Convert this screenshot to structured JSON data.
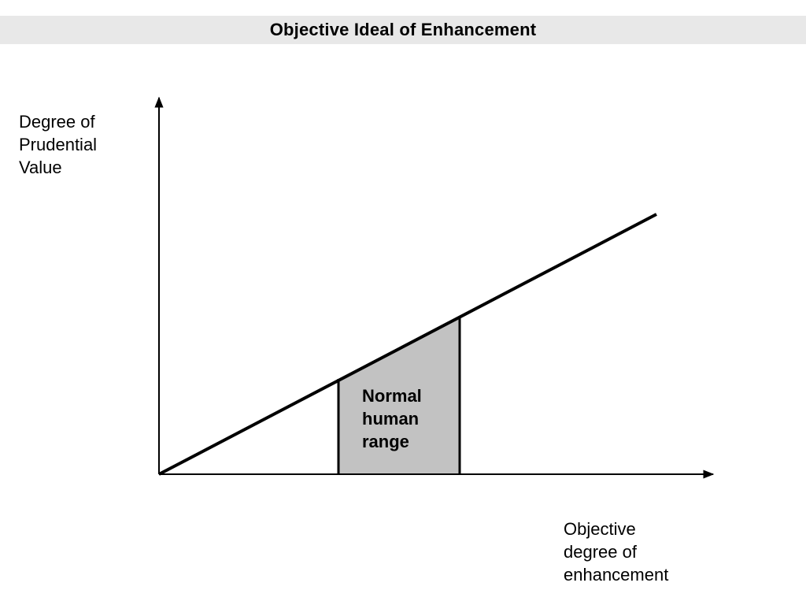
{
  "title": "Objective Ideal of Enhancement",
  "y_axis_label": [
    "Degree of",
    "Prudential",
    "Value"
  ],
  "x_axis_label": [
    "Objective",
    "degree of",
    "enhancement"
  ],
  "region_label": [
    "Normal",
    "human",
    "range"
  ],
  "colors": {
    "title_background": "#e8e8e8",
    "region_fill": "#c2c2c2",
    "stroke": "#000000"
  }
}
